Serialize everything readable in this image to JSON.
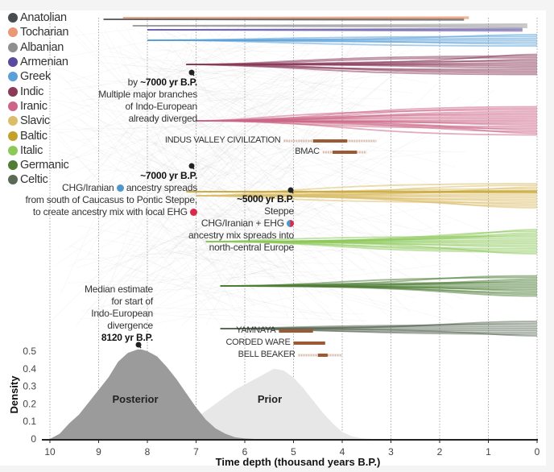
{
  "legend": [
    {
      "label": "Anatolian",
      "color": "#4a4d4f"
    },
    {
      "label": "Tocharian",
      "color": "#e99a74"
    },
    {
      "label": "Albanian",
      "color": "#8f8f8f"
    },
    {
      "label": "Armenian",
      "color": "#5a4a9e"
    },
    {
      "label": "Greek",
      "color": "#5aa0d8"
    },
    {
      "label": "Indic",
      "color": "#8b3a5a"
    },
    {
      "label": "Iranic",
      "color": "#cc6686"
    },
    {
      "label": "Slavic",
      "color": "#dbbd6a"
    },
    {
      "label": "Baltic",
      "color": "#c4a22a"
    },
    {
      "label": "Italic",
      "color": "#8dc85a"
    },
    {
      "label": "Germanic",
      "color": "#4e7e36"
    },
    {
      "label": "Celtic",
      "color": "#5a6a56"
    }
  ],
  "annotations": {
    "branches": {
      "line1_prefix": "by ",
      "line1_bold": "~7000 yr B.P.",
      "line2": "Multiple major branches",
      "line3": "of Indo-European",
      "line4": "already diverged"
    },
    "chg": {
      "title": "~7000 yr B.P.",
      "line1_a": "CHG/Iranian",
      "line1_b": "ancestry spreads",
      "line2": "from south of Caucasus to Pontic Steppe,",
      "line3": "to create ancestry mix with local EHG"
    },
    "steppe": {
      "title": "~5000 yr B.P.",
      "line1": "Steppe",
      "line2": "CHG/Iranian + EHG",
      "line3": "ancestry mix spreads into",
      "line4": "north-central Europe"
    },
    "median": {
      "line1": "Median estimate",
      "line2": "for start of",
      "line3": "Indo-European",
      "line4": "divergence",
      "line5": "8120 yr B.P."
    }
  },
  "colors": {
    "chg_blue": "#4f97c8",
    "ehg_red": "#d92a4c",
    "archaeology_bar": "#9c5a34",
    "posterior_fill": "#9a9b9a",
    "prior_fill": "#e6e7e6"
  },
  "chart_data": [
    {
      "type": "tree",
      "title": "Indo-European language phylogeny (sampled trees)",
      "xlabel": "Time depth (thousand years B.P.)",
      "x_range": [
        10,
        0
      ],
      "branches_order_top_to_bottom": [
        "Anatolian",
        "Tocharian",
        "Albanian",
        "Armenian",
        "Greek",
        "Indic",
        "Iranic",
        "Slavic",
        "Baltic",
        "Italic",
        "Germanic",
        "Celtic"
      ],
      "archaeology": [
        {
          "label": "INDUS VALLEY CIVILIZATION",
          "range_faint": [
            5.2,
            3.3
          ],
          "range_solid": [
            4.6,
            3.9
          ]
        },
        {
          "label": "BMAC",
          "range_faint": [
            4.4,
            3.5
          ],
          "range_solid": [
            4.2,
            3.7
          ]
        },
        {
          "label": "YAMNAYA",
          "range_solid": [
            5.3,
            4.6
          ]
        },
        {
          "label": "CORDED WARE",
          "range_solid": [
            5.0,
            4.35
          ]
        },
        {
          "label": "BELL BEAKER",
          "range_faint": [
            4.9,
            4.0
          ],
          "range_solid": [
            4.5,
            4.3
          ]
        }
      ]
    },
    {
      "type": "area",
      "xlabel": "Time depth (thousand years B.P.)",
      "ylabel": "Density",
      "xlim": [
        10,
        0
      ],
      "ylim": [
        0,
        0.55
      ],
      "xticks": [
        "10",
        "9",
        "8",
        "7",
        "6",
        "5",
        "4",
        "3",
        "2",
        "1",
        "0"
      ],
      "yticks": [
        "0",
        "0.1",
        "0.2",
        "0.3",
        "0.4",
        "0.5"
      ],
      "series": [
        {
          "name": "Posterior",
          "x": [
            10.0,
            9.8,
            9.6,
            9.4,
            9.2,
            9.0,
            8.8,
            8.6,
            8.4,
            8.2,
            8.12,
            8.0,
            7.8,
            7.6,
            7.4,
            7.2,
            7.0,
            6.8,
            6.6,
            6.4,
            6.2,
            6.0,
            5.8
          ],
          "y": [
            0.0,
            0.03,
            0.09,
            0.14,
            0.21,
            0.28,
            0.35,
            0.44,
            0.49,
            0.51,
            0.51,
            0.5,
            0.47,
            0.41,
            0.34,
            0.26,
            0.18,
            0.11,
            0.06,
            0.03,
            0.01,
            0.003,
            0.0
          ]
        },
        {
          "name": "Prior",
          "x": [
            7.2,
            7.0,
            6.8,
            6.6,
            6.4,
            6.2,
            6.0,
            5.8,
            5.6,
            5.4,
            5.2,
            5.0,
            4.8,
            4.6,
            4.4,
            4.2,
            4.0,
            3.8,
            3.6,
            3.4
          ],
          "y": [
            0.0,
            0.12,
            0.16,
            0.2,
            0.24,
            0.28,
            0.31,
            0.34,
            0.37,
            0.4,
            0.39,
            0.35,
            0.29,
            0.22,
            0.15,
            0.09,
            0.04,
            0.015,
            0.004,
            0.0
          ]
        }
      ],
      "annotations": [
        {
          "text": "Median estimate for start of Indo-European divergence 8120 yr B.P.",
          "x": 8.12
        }
      ],
      "grid": "vertical dotted"
    }
  ]
}
